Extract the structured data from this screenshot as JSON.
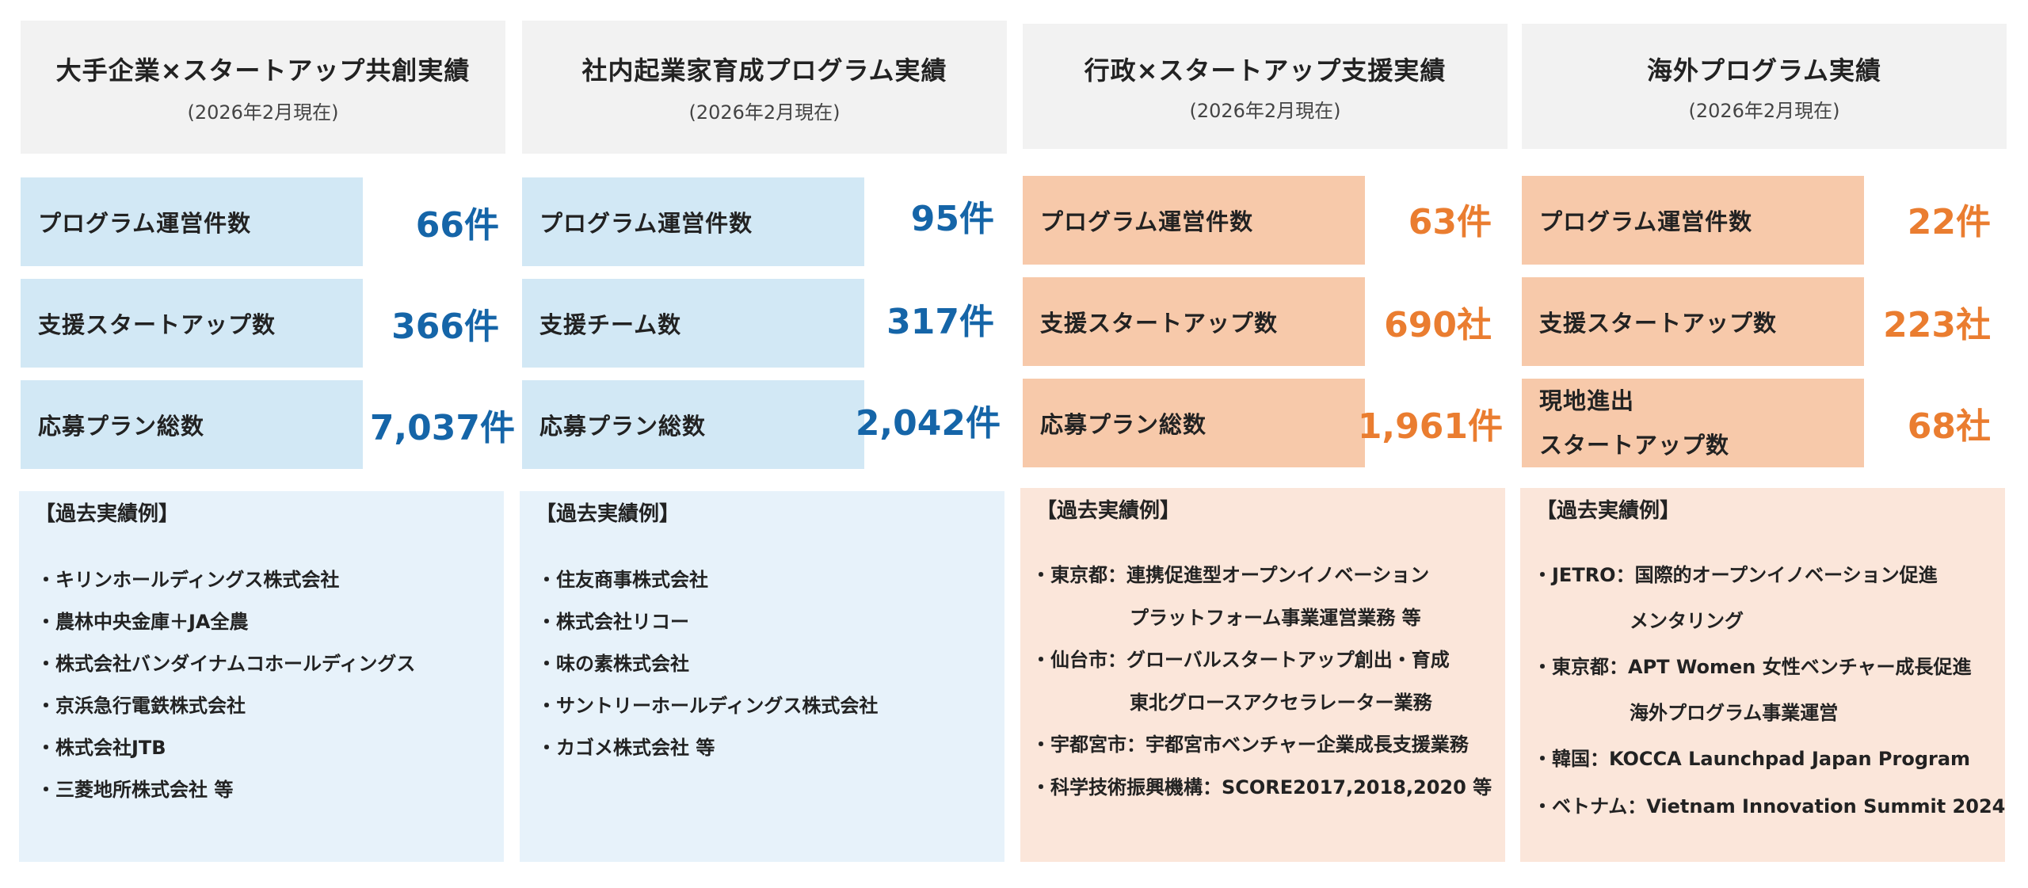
{
  "columns": [
    {
      "theme": "blue",
      "title": "大手企業×スタートアップ共創実績",
      "as_of": "(2026年2月現在)",
      "stats": [
        {
          "label": "プログラム運営件数",
          "value": "66件"
        },
        {
          "label": "支援スタートアップ数",
          "value": "366件"
        },
        {
          "label": "応募プラン総数",
          "value": "7,037件"
        }
      ],
      "examples_heading": "【過去実績例】",
      "examples": [
        "・キリンホールディングス株式会社",
        "・農林中央金庫＋JA全農",
        "・株式会社バンダイナムコホールディングス",
        "・京浜急行電鉄株式会社",
        "・株式会社JTB",
        "・三菱地所株式会社 等"
      ]
    },
    {
      "theme": "blue",
      "title": "社内起業家育成プログラム実績",
      "as_of": "(2026年2月現在)",
      "stats": [
        {
          "label": "プログラム運営件数",
          "value": "95件"
        },
        {
          "label": "支援チーム数",
          "value": "317件"
        },
        {
          "label": "応募プラン総数",
          "value": "2,042件"
        }
      ],
      "examples_heading": "【過去実績例】",
      "examples": [
        "・住友商事株式会社",
        "・株式会社リコー",
        "・味の素株式会社",
        "・サントリーホールディングス株式会社",
        "・カゴメ株式会社 等"
      ]
    },
    {
      "theme": "orange",
      "title": "行政×スタートアップ支援実績",
      "as_of": "(2026年2月現在)",
      "stats": [
        {
          "label": "プログラム運営件数",
          "value": "63件"
        },
        {
          "label": "支援スタートアップ数",
          "value": "690社"
        },
        {
          "label": "応募プラン総数",
          "value": "1,961件"
        }
      ],
      "examples_heading": "【過去実績例】",
      "examples": [
        {
          "head": "・東京都：連携促進型オープンイノベーション",
          "cont": "プラットフォーム事業運営業務 等"
        },
        {
          "head": "・仙台市：グローバルスタートアップ創出・育成",
          "cont": "東北グロースアクセラレーター業務"
        },
        {
          "head": "・宇都宮市：宇都宮市ベンチャー企業成長支援業務",
          "cont": ""
        },
        {
          "head": "・科学技術振興機構：SCORE2017,2018,2020 等",
          "cont": ""
        }
      ]
    },
    {
      "theme": "orange",
      "title": "海外プログラム実績",
      "as_of": "(2026年2月現在)",
      "stats": [
        {
          "label": "プログラム運営件数",
          "value": "22件"
        },
        {
          "label": "支援スタートアップ数",
          "value": "223社"
        },
        {
          "label": "現地進出",
          "label2": "スタートアップ数",
          "value": "68社"
        }
      ],
      "examples_heading": "【過去実績例】",
      "examples": [
        {
          "head": "・JETRO：国際的オープンイノベーション促進",
          "cont": "メンタリング"
        },
        {
          "head": "・東京都：APT Women 女性ベンチャー成長促進",
          "cont": "海外プログラム事業運営"
        },
        {
          "head": "・韓国：KOCCA Launchpad Japan Program",
          "cont": ""
        },
        {
          "head": "・ベトナム：Vietnam Innovation Summit 2024",
          "cont": ""
        }
      ]
    }
  ]
}
